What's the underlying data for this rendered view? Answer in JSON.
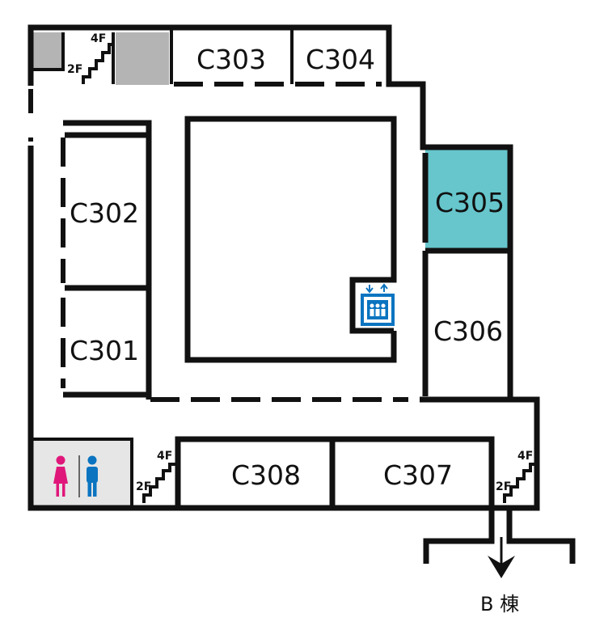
{
  "rooms": {
    "c301": "C301",
    "c302": "C302",
    "c303": "C303",
    "c304": "C304",
    "c305": "C305",
    "c306": "C306",
    "c307": "C307",
    "c308": "C308"
  },
  "stairs": {
    "upper": "4F",
    "lower": "2F"
  },
  "exit_label": "B 棟",
  "colors": {
    "highlight_room": "#66c6cc",
    "restroom_bg": "#e6e6e6",
    "storage_gray": "#b4b4b4",
    "women_icon": "#e0177a",
    "men_icon": "#0a74c0",
    "elevator_icon": "#0a74c0",
    "wall": "#111111"
  },
  "icons": [
    "stairs-icon",
    "elevator-icon",
    "women-restroom-icon",
    "men-restroom-icon",
    "exit-arrow-icon"
  ]
}
